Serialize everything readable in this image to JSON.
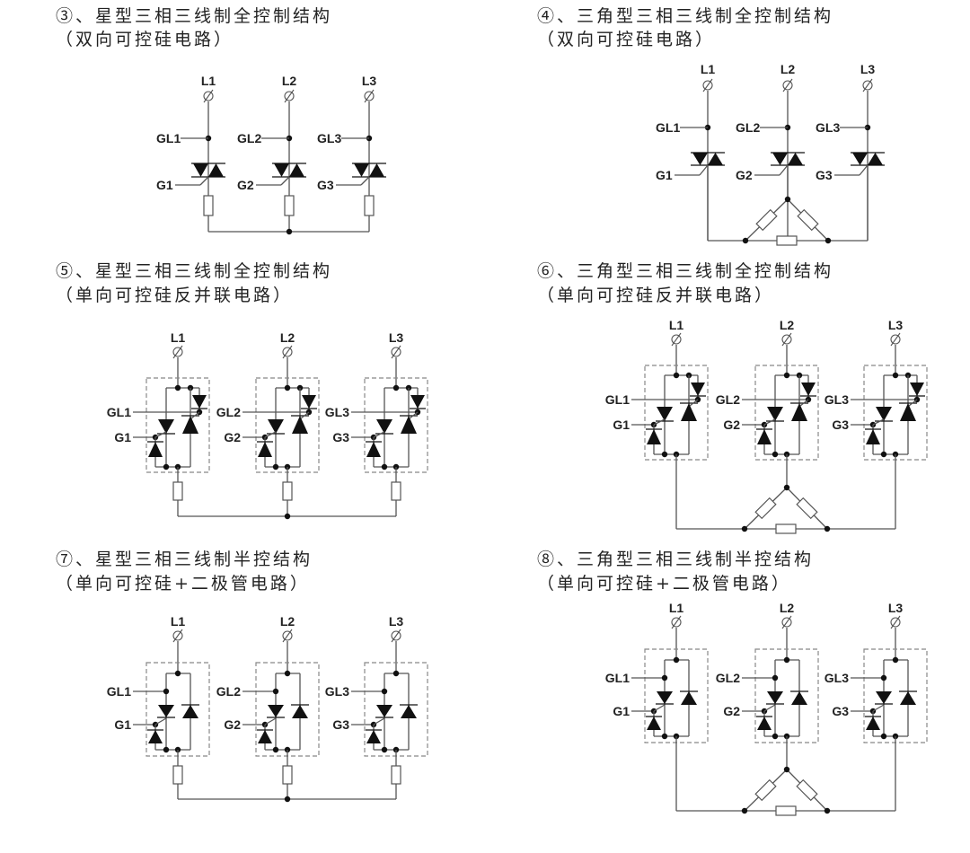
{
  "diagrams": [
    {
      "number": "③",
      "title": "③、星型三相三线制全控制结构",
      "subtitle": "（双向可控硅电路）",
      "topology": "star",
      "device": "triac",
      "phases": [
        "L1",
        "L2",
        "L3"
      ],
      "gate_common": [
        "GL1",
        "GL2",
        "GL3"
      ],
      "gates": [
        "G1",
        "G2",
        "G3"
      ]
    },
    {
      "number": "④",
      "title": "④、三角型三相三线制全控制结构",
      "subtitle": "（双向可控硅电路）",
      "topology": "delta",
      "device": "triac",
      "phases": [
        "L1",
        "L2",
        "L3"
      ],
      "gate_common": [
        "GL1",
        "GL2",
        "GL3"
      ],
      "gates": [
        "G1",
        "G2",
        "G3"
      ]
    },
    {
      "number": "⑤",
      "title": "⑤、星型三相三线制全控制结构",
      "subtitle": "（单向可控硅反并联电路）",
      "topology": "star",
      "device": "antiparallel-scr",
      "phases": [
        "L1",
        "L2",
        "L3"
      ],
      "gate_common": [
        "GL1",
        "GL2",
        "GL3"
      ],
      "gates": [
        "G1",
        "G2",
        "G3"
      ]
    },
    {
      "number": "⑥",
      "title": "⑥、三角型三相三线制全控制结构",
      "subtitle": "（单向可控硅反并联电路）",
      "topology": "delta",
      "device": "antiparallel-scr",
      "phases": [
        "L1",
        "L2",
        "L3"
      ],
      "gate_common": [
        "GL1",
        "GL2",
        "GL3"
      ],
      "gates": [
        "G1",
        "G2",
        "G3"
      ]
    },
    {
      "number": "⑦",
      "title": "⑦、星型三相三线制半控结构",
      "subtitle": "（单向可控硅+二极管电路）",
      "topology": "star",
      "device": "scr-diode",
      "phases": [
        "L1",
        "L2",
        "L3"
      ],
      "gate_common": [
        "GL1",
        "GL2",
        "GL3"
      ],
      "gates": [
        "G1",
        "G2",
        "G3"
      ]
    },
    {
      "number": "⑧",
      "title": "⑧、三角型三相三线制半控结构",
      "subtitle": "（单向可控硅+二极管电路）",
      "topology": "delta",
      "device": "scr-diode",
      "phases": [
        "L1",
        "L2",
        "L3"
      ],
      "gate_common": [
        "GL1",
        "GL2",
        "GL3"
      ],
      "gates": [
        "G1",
        "G2",
        "G3"
      ]
    }
  ],
  "terminal_symbol": "∅",
  "colors": {
    "wire": "#555555",
    "component": "#111111",
    "box": "#888888",
    "text": "#222222"
  }
}
